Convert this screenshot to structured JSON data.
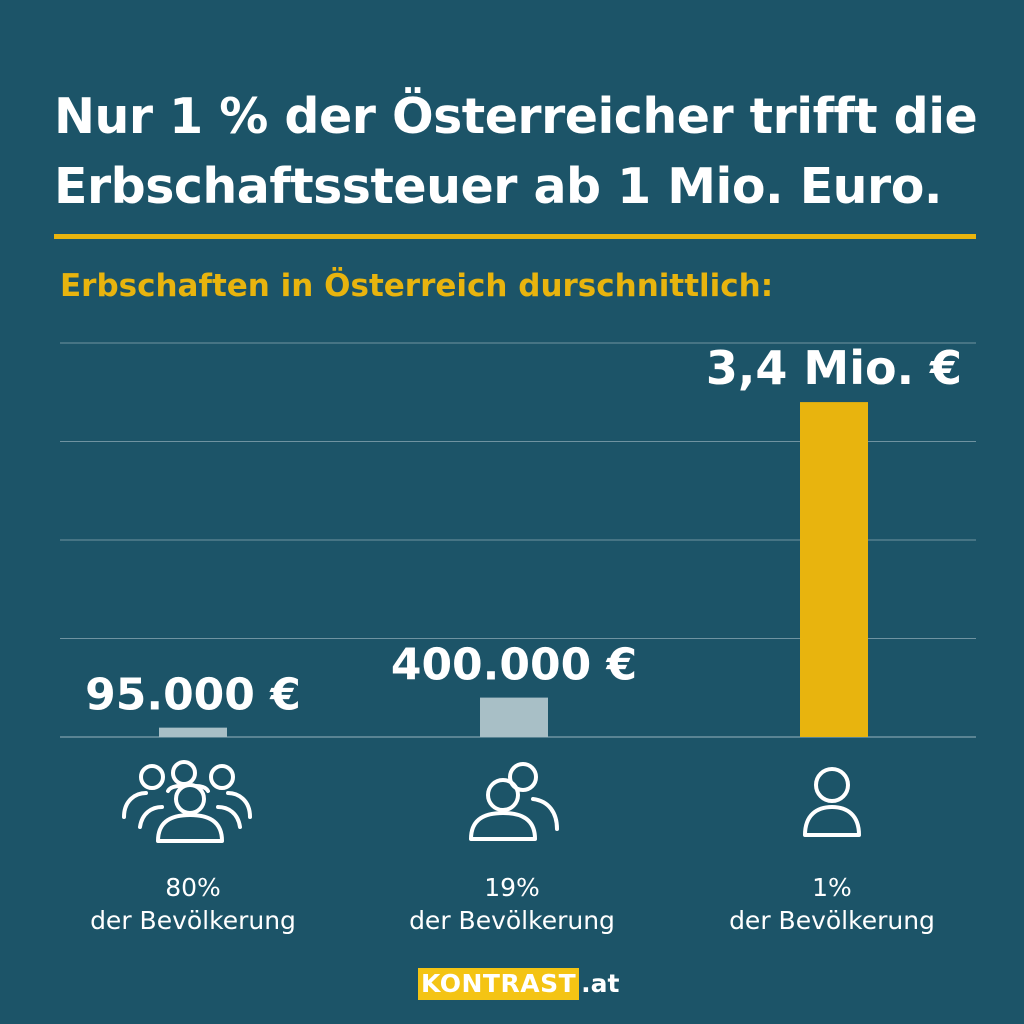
{
  "header": {
    "title_line1": "Nur 1 % der Österreicher trifft die",
    "title_line2": "Erbschaftssteuer ab 1 Mio. Euro."
  },
  "subtitle": "Erbschaften in Österreich durschnittlich:",
  "chart_data": {
    "type": "bar",
    "title": "",
    "xlabel": "",
    "ylabel": "",
    "categories": [
      "80%\nder Bevölkerung",
      "19%\nder Bevölkerung",
      "1%\nder Bevölkerung"
    ],
    "values": [
      95000,
      400000,
      3400000
    ],
    "value_labels": [
      "95.000 €",
      "400.000 €",
      "3,4 Mio. €"
    ],
    "ylim": [
      0,
      4000000
    ],
    "grid": true,
    "bar_colors": [
      "#a8bfc6",
      "#a8bfc6",
      "#e8b40e"
    ]
  },
  "groups": [
    {
      "icon": "crowd-icon",
      "percent": "80%",
      "text": "der Bevölkerung"
    },
    {
      "icon": "two-people-icon",
      "percent": "19%",
      "text": "der Bevölkerung"
    },
    {
      "icon": "person-icon",
      "percent": "1%",
      "text": "der Bevölkerung"
    }
  ],
  "brand": {
    "name": "KONTRAST",
    "tld": ".at"
  },
  "colors": {
    "background": "#1c5468",
    "accent": "#e8b40e",
    "bar_muted": "#a8bfc6",
    "text": "#ffffff"
  }
}
